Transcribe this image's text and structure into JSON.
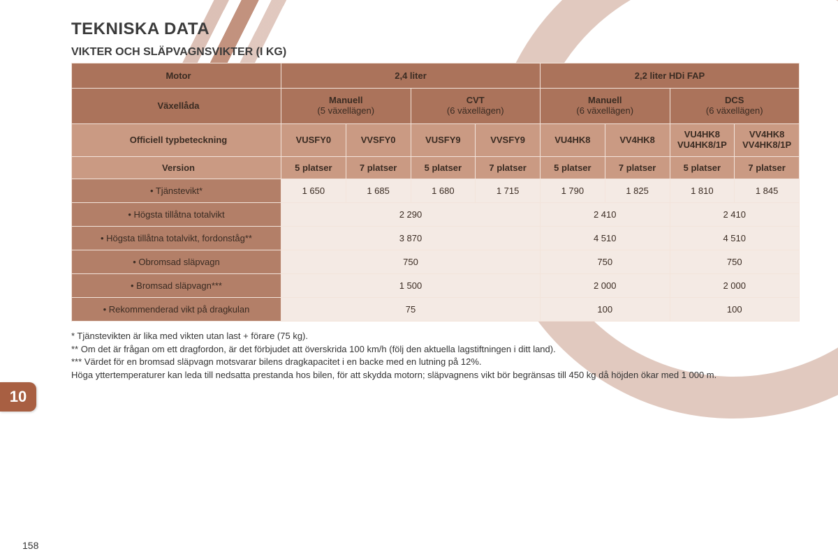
{
  "meta": {
    "section_number": "10",
    "page_number": "158"
  },
  "headings": {
    "title": "TEKNISKA DATA",
    "subtitle": "VIKTER OCH SLÄPVAGNSVIKTER (I KG)"
  },
  "table": {
    "row_labels": {
      "motor": "Motor",
      "gearbox": "Växellåda",
      "typecode": "Officiell typbeteckning",
      "version": "Version"
    },
    "engines": [
      "2,4 liter",
      "2,2 liter HDi FAP"
    ],
    "gearboxes": [
      {
        "name": "Manuell",
        "detail": "(5 växellägen)"
      },
      {
        "name": "CVT",
        "detail": "(6 växellägen)"
      },
      {
        "name": "Manuell",
        "detail": "(6 växellägen)"
      },
      {
        "name": "DCS",
        "detail": "(6 växellägen)"
      }
    ],
    "typecodes": [
      "VUSFY0",
      "VVSFY0",
      "VUSFY9",
      "VVSFY9",
      "VU4HK8",
      "VV4HK8",
      "VU4HK8 VU4HK8/1P",
      "VV4HK8 VV4HK8/1P"
    ],
    "versions": [
      "5 platser",
      "7 platser",
      "5 platser",
      "7 platser",
      "5 platser",
      "7 platser",
      "5 platser",
      "7 platser"
    ],
    "body_rows": [
      {
        "label": "• Tjänstevikt*",
        "cells": [
          "1 650",
          "1 685",
          "1 680",
          "1 715",
          "1 790",
          "1 825",
          "1 810",
          "1 845"
        ],
        "spans": [
          1,
          1,
          1,
          1,
          1,
          1,
          1,
          1
        ]
      },
      {
        "label": "• Högsta tillåtna totalvikt",
        "cells": [
          "2 290",
          "2 410",
          "2 410"
        ],
        "spans": [
          4,
          2,
          2
        ]
      },
      {
        "label": "• Högsta tillåtna totalvikt, fordonståg**",
        "cells": [
          "3 870",
          "4 510",
          "4 510"
        ],
        "spans": [
          4,
          2,
          2
        ]
      },
      {
        "label": "• Obromsad släpvagn",
        "cells": [
          "750",
          "750",
          "750"
        ],
        "spans": [
          4,
          2,
          2
        ]
      },
      {
        "label": "• Bromsad släpvagn***",
        "cells": [
          "1 500",
          "2 000",
          "2 000"
        ],
        "spans": [
          4,
          2,
          2
        ]
      },
      {
        "label": "• Rekommenderad vikt på dragkulan",
        "cells": [
          "75",
          "100",
          "100"
        ],
        "spans": [
          4,
          2,
          2
        ]
      }
    ],
    "colors": {
      "header_dark": "#ab735b",
      "header_light": "#ca9a83",
      "body_bg": "#f4eae4",
      "border": "#f3e4db",
      "tab_bg": "#a85f42"
    }
  },
  "footnotes": [
    "* Tjänstevikten är lika med vikten utan last + förare (75 kg).",
    "** Om det är frågan om ett dragfordon, är det förbjudet att överskrida 100 km/h (följ den aktuella lagstiftningen i ditt land).",
    "*** Värdet för en bromsad släpvagn motsvarar bilens dragkapacitet i en backe med en lutning på 12%.",
    "Höga yttertemperaturer kan leda till nedsatta prestanda hos bilen, för att skydda motorn; släpvagnens vikt bör begränsas till 450 kg då höjden ökar med 1 000 m."
  ]
}
